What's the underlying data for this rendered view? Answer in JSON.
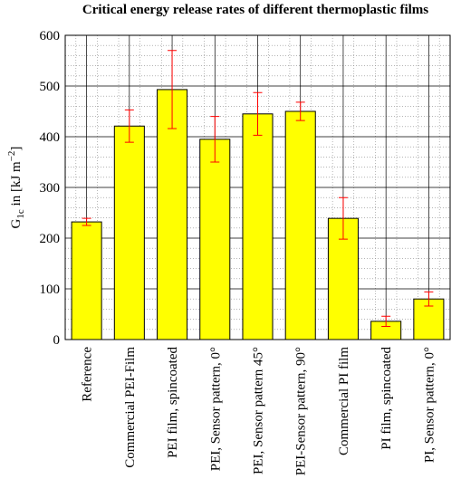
{
  "chart_data": {
    "type": "bar",
    "title": "Critical energy release rates of different thermoplastic films",
    "ylabel": {
      "base": "G",
      "sub": "1c",
      "mid": " in [kJ m",
      "sup": "−2",
      "end": "]"
    },
    "categories": [
      "Reference",
      "Commercial PEI-Film",
      "PEI film, spincoated",
      "PEI, Sensor pattern, 0°",
      "PEI, Sensor pattern 45°",
      "PEI-Sensor pattern, 90°",
      "Commercial PI film",
      "PI film, spincoated",
      "PI, Sensor pattern, 0°"
    ],
    "values": [
      232,
      421,
      493,
      395,
      445,
      450,
      239,
      36,
      80
    ],
    "errors": [
      7,
      32,
      77,
      45,
      42,
      18,
      41,
      10,
      14
    ],
    "color": "#ffff00",
    "error_color": "#ff0000",
    "ylim": [
      0,
      600
    ],
    "yticks": [
      0,
      100,
      200,
      300,
      400,
      500,
      600
    ],
    "grid": true
  }
}
